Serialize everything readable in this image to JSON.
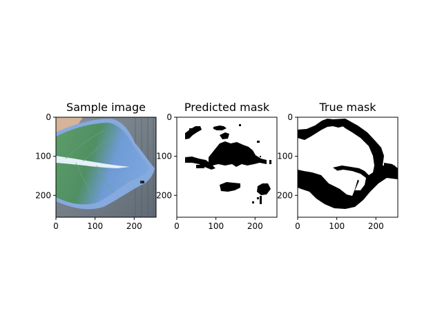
{
  "figure": {
    "background": "#ffffff",
    "axis_color": "#000000"
  },
  "chart_data": [
    {
      "type": "image",
      "title": "Sample image",
      "xlim": [
        0,
        256
      ],
      "ylim": [
        256,
        0
      ],
      "xticks": [
        0,
        100,
        200
      ],
      "yticks": [
        0,
        100,
        200
      ],
      "content": "photo of a blue-green leaf on a grey wooden background",
      "colors": {
        "background": "#7a8590",
        "leaf_blue": "#6f9bd6",
        "leaf_green": "#4f8f62",
        "leaf_edge": "#86a9de",
        "midrib": "#e4f1f7",
        "skin": "#d7b39a"
      }
    },
    {
      "type": "mask",
      "title": "Predicted mask",
      "xlim": [
        0,
        256
      ],
      "ylim": [
        256,
        0
      ],
      "xticks": [
        0,
        100,
        200
      ],
      "yticks": [
        0,
        100,
        200
      ],
      "colors": {
        "foreground": "#000000",
        "background": "#ffffff"
      }
    },
    {
      "type": "mask",
      "title": "True mask",
      "xlim": [
        0,
        256
      ],
      "ylim": [
        256,
        0
      ],
      "xticks": [
        0,
        100,
        200
      ],
      "yticks": [
        0,
        100,
        200
      ],
      "colors": {
        "foreground": "#000000",
        "background": "#ffffff"
      }
    }
  ]
}
